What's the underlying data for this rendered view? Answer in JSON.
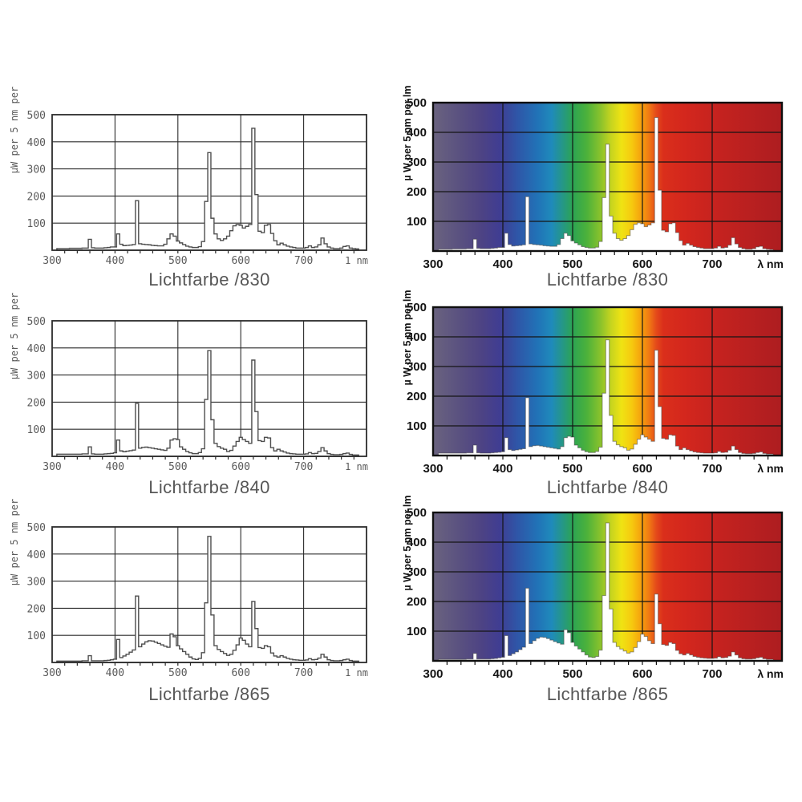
{
  "page": {
    "background": "#ffffff"
  },
  "chart_data": {
    "type": "bar",
    "note": "six spectral power distribution panels, stepped 5 nm bins; left column plain line charts, right column white area over visible-spectrum gradient",
    "xlim": [
      300,
      800
    ],
    "ylim": [
      0,
      500
    ],
    "bin_nm": 5,
    "start_nm": 310,
    "x_ticks": [
      300,
      400,
      500,
      600,
      700
    ],
    "y_ticks": [
      100,
      200,
      300,
      400,
      500
    ],
    "minor_tick_step_nm": 20,
    "panels": [
      {
        "title": "Lichtfarbe /830",
        "lamp": 0,
        "style": "line",
        "ylabel": "µW per 5 nm per",
        "xlabel_end": "1 nm"
      },
      {
        "title": "Lichtfarbe /830",
        "lamp": 0,
        "style": "spectrum",
        "ylabel": "µ W per 5 nm per lm",
        "xlabel_end": "λ nm"
      },
      {
        "title": "Lichtfarbe /840",
        "lamp": 1,
        "style": "line",
        "ylabel": "µW per 5 nm per",
        "xlabel_end": "1 nm"
      },
      {
        "title": "Lichtfarbe /840",
        "lamp": 1,
        "style": "spectrum",
        "ylabel": "µ W per 5 nm per lm",
        "xlabel_end": "λ nm"
      },
      {
        "title": "Lichtfarbe /865",
        "lamp": 2,
        "style": "line",
        "ylabel": "µW per 5 nm per",
        "xlabel_end": "1 nm"
      },
      {
        "title": "Lichtfarbe /865",
        "lamp": 2,
        "style": "spectrum",
        "ylabel": "µ W per 5 nm per lm",
        "xlabel_end": "λ nm"
      }
    ],
    "lamps": [
      {
        "name": "/830",
        "values": [
          6,
          6,
          6,
          6,
          7,
          7,
          7,
          7,
          8,
          8,
          40,
          9,
          8,
          8,
          8,
          9,
          10,
          12,
          12,
          60,
          22,
          17,
          18,
          19,
          21,
          183,
          24,
          22,
          21,
          20,
          18,
          17,
          16,
          16,
          22,
          42,
          60,
          52,
          34,
          27,
          21,
          15,
          12,
          10,
          10,
          13,
          32,
          180,
          360,
          118,
          60,
          42,
          36,
          42,
          52,
          72,
          90,
          95,
          92,
          82,
          88,
          95,
          450,
          205,
          70,
          65,
          92,
          95,
          62,
          35,
          20,
          26,
          20,
          15,
          12,
          10,
          8,
          8,
          8,
          10,
          16,
          10,
          12,
          20,
          45,
          24,
          12,
          8,
          6,
          6,
          8,
          14,
          16,
          8,
          6,
          5
        ]
      },
      {
        "name": "/840",
        "values": [
          8,
          8,
          8,
          8,
          8,
          8,
          8,
          8,
          9,
          9,
          35,
          9,
          8,
          8,
          8,
          9,
          10,
          11,
          13,
          60,
          20,
          17,
          19,
          21,
          23,
          195,
          30,
          33,
          34,
          32,
          30,
          28,
          26,
          24,
          22,
          30,
          60,
          65,
          62,
          35,
          26,
          18,
          13,
          10,
          10,
          14,
          28,
          210,
          390,
          135,
          48,
          36,
          30,
          26,
          18,
          22,
          38,
          55,
          70,
          62,
          55,
          48,
          355,
          165,
          58,
          55,
          70,
          68,
          32,
          20,
          26,
          20,
          16,
          12,
          10,
          9,
          8,
          8,
          8,
          9,
          14,
          10,
          11,
          18,
          32,
          20,
          10,
          7,
          6,
          6,
          7,
          10,
          12,
          7,
          5,
          5
        ]
      },
      {
        "name": "/865",
        "values": [
          5,
          5,
          5,
          5,
          5,
          5,
          5,
          5,
          6,
          6,
          25,
          6,
          6,
          6,
          6,
          7,
          8,
          10,
          12,
          85,
          18,
          24,
          30,
          38,
          46,
          245,
          58,
          68,
          76,
          80,
          79,
          75,
          70,
          65,
          60,
          56,
          105,
          95,
          62,
          50,
          40,
          30,
          20,
          13,
          11,
          15,
          36,
          220,
          465,
          175,
          62,
          48,
          40,
          33,
          26,
          30,
          45,
          65,
          90,
          82,
          68,
          58,
          225,
          125,
          55,
          52,
          62,
          58,
          35,
          24,
          20,
          25,
          20,
          15,
          12,
          10,
          9,
          8,
          8,
          9,
          14,
          10,
          11,
          16,
          30,
          20,
          10,
          7,
          6,
          6,
          7,
          10,
          12,
          7,
          5,
          5
        ]
      }
    ],
    "spectrum_gradient": [
      [
        0.0,
        "#6a637f"
      ],
      [
        0.08,
        "#595080"
      ],
      [
        0.14,
        "#4d4384"
      ],
      [
        0.19,
        "#403d92"
      ],
      [
        0.24,
        "#2f55a7"
      ],
      [
        0.3,
        "#2173b7"
      ],
      [
        0.34,
        "#1f8abb"
      ],
      [
        0.38,
        "#279b77"
      ],
      [
        0.4,
        "#2ca453"
      ],
      [
        0.44,
        "#4bb13b"
      ],
      [
        0.48,
        "#8ac22c"
      ],
      [
        0.51,
        "#c6d41f"
      ],
      [
        0.54,
        "#efe313"
      ],
      [
        0.57,
        "#f6c90f"
      ],
      [
        0.6,
        "#f59c0d"
      ],
      [
        0.62,
        "#f07714"
      ],
      [
        0.64,
        "#e4491a"
      ],
      [
        0.66,
        "#da2f1b"
      ],
      [
        0.72,
        "#d4271d"
      ],
      [
        0.8,
        "#c7231f"
      ],
      [
        1.0,
        "#ad1d20"
      ]
    ],
    "colors": {
      "line_stroke": "#4e4e4e",
      "line_labels": "#5a5a5a",
      "spectrum_labels": "#141414",
      "grid": "#2b2b2b",
      "title": "#575757",
      "area_fill": "#ffffff"
    }
  }
}
